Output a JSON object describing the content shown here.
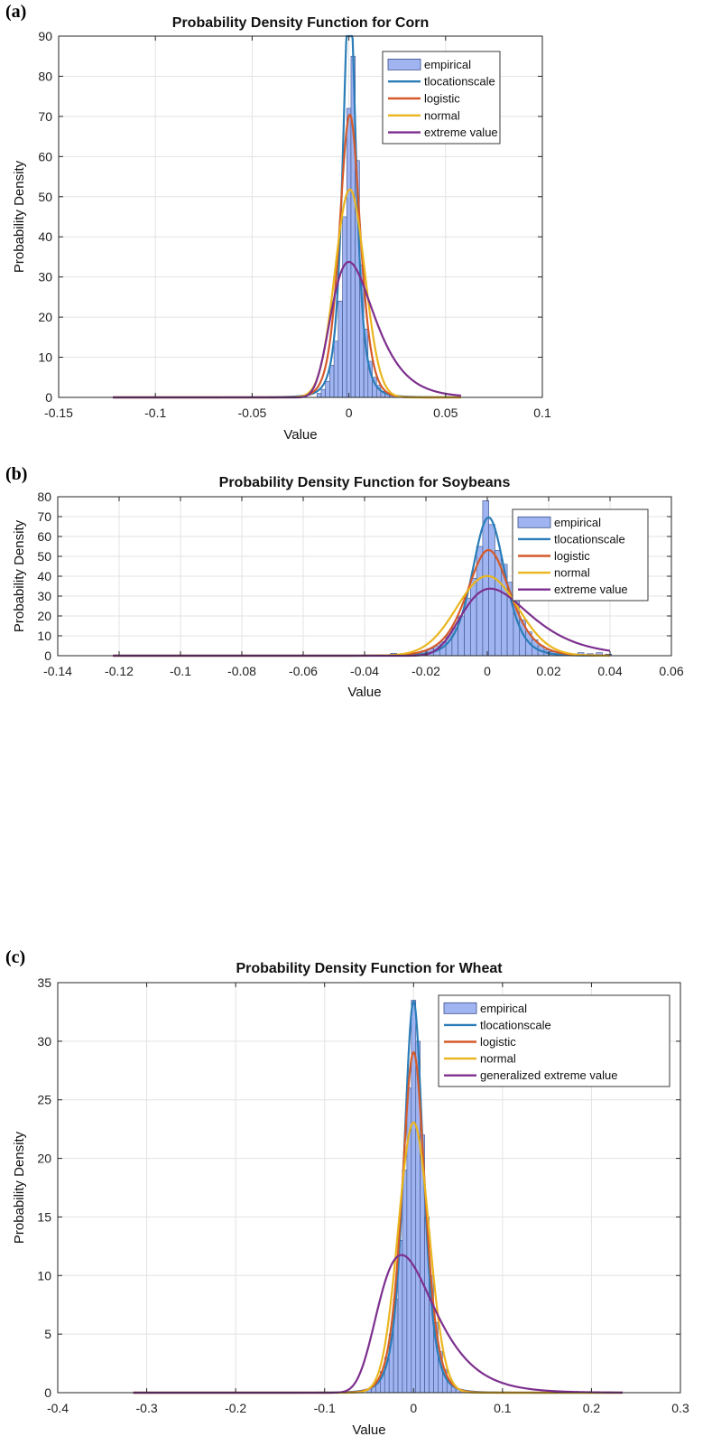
{
  "chart_data": [
    {
      "panel_label": "(a)",
      "type": "histogram+line",
      "title": "Probability Density Function for Corn",
      "xlabel": "Value",
      "ylabel": "Probability Density",
      "xlim": [
        -0.15,
        0.1
      ],
      "ylim": [
        0,
        90
      ],
      "xticks": [
        -0.15,
        -0.1,
        -0.05,
        0,
        0.05,
        0.1
      ],
      "xtick_labels": [
        "-0.15",
        "-0.1",
        "-0.05",
        "0",
        "0.05",
        "0.1"
      ],
      "yticks": [
        0,
        10,
        20,
        30,
        40,
        50,
        60,
        70,
        80,
        90
      ],
      "ytick_labels": [
        "0",
        "10",
        "20",
        "30",
        "40",
        "50",
        "60",
        "70",
        "80",
        "90"
      ],
      "grid": true,
      "legend_position": "top-right",
      "legend": [
        "empirical",
        "tlocationscale",
        "logistic",
        "normal",
        "extreme value"
      ],
      "colors": {
        "empirical_fill": "#9fb4f0",
        "empirical_edge": "#3b4f8a",
        "tlocationscale": "#2a7db8",
        "logistic": "#d45a2a",
        "normal": "#eab51e",
        "extreme_value": "#7d2f8e"
      },
      "histogram": {
        "bin_centers": [
          -0.0154,
          -0.0132,
          -0.011,
          -0.0088,
          -0.0066,
          -0.0044,
          -0.0022,
          0.0,
          0.0022,
          0.0044,
          0.0066,
          0.0088,
          0.011,
          0.0132,
          0.0154,
          0.0176,
          0.0198,
          0.022
        ],
        "values": [
          1,
          2,
          4,
          8,
          14,
          24,
          45,
          72,
          85,
          59,
          33,
          17,
          9,
          5,
          3,
          1.5,
          0.8,
          0.4
        ]
      },
      "series": [
        {
          "name": "tlocationscale",
          "dist": "t",
          "mu": 0.0003,
          "sigma": 0.0036,
          "nu": 3.0
        },
        {
          "name": "logistic",
          "dist": "logistic",
          "mu": 0.0005,
          "s": 0.00355
        },
        {
          "name": "normal",
          "dist": "normal",
          "mu": 0.0005,
          "sigma": 0.0077
        },
        {
          "name": "extreme value",
          "dist": "evmax",
          "mu": 0.0,
          "beta": 0.0109
        }
      ],
      "x_range": [
        -0.122,
        0.058
      ]
    },
    {
      "panel_label": "(b)",
      "type": "histogram+line",
      "title": "Probability Density Function for Soybeans",
      "xlabel": "Value",
      "ylabel": "Probability Density",
      "xlim": [
        -0.14,
        0.06
      ],
      "ylim": [
        0,
        80
      ],
      "xticks": [
        -0.14,
        -0.12,
        -0.1,
        -0.08,
        -0.06,
        -0.04,
        -0.02,
        0,
        0.02,
        0.04,
        0.06
      ],
      "xtick_labels": [
        "-0.14",
        "-0.12",
        "-0.1",
        "-0.08",
        "-0.06",
        "-0.04",
        "-0.02",
        "0",
        "0.02",
        "0.04",
        "0.06"
      ],
      "yticks": [
        0,
        10,
        20,
        30,
        40,
        50,
        60,
        70,
        80
      ],
      "ytick_labels": [
        "0",
        "10",
        "20",
        "30",
        "40",
        "50",
        "60",
        "70",
        "80"
      ],
      "grid": true,
      "legend_position": "top-right",
      "legend": [
        "empirical",
        "tlocationscale",
        "logistic",
        "normal",
        "extreme value"
      ],
      "colors": {
        "empirical_fill": "#9fb4f0",
        "empirical_edge": "#3b4f8a",
        "tlocationscale": "#2a7db8",
        "logistic": "#d45a2a",
        "normal": "#eab51e",
        "extreme_value": "#7d2f8e"
      },
      "histogram": {
        "bin_centers": [
          -0.0305,
          -0.0285,
          -0.0265,
          -0.0245,
          -0.0225,
          -0.0205,
          -0.0185,
          -0.0165,
          -0.0145,
          -0.0125,
          -0.0105,
          -0.0085,
          -0.0065,
          -0.0045,
          -0.0025,
          -0.0005,
          0.0015,
          0.0035,
          0.0055,
          0.0075,
          0.0095,
          0.0115,
          0.0135,
          0.0155,
          0.0175,
          0.0195,
          0.0215,
          0.0235,
          0.0255,
          0.0275,
          0.0305,
          0.0335,
          0.0365,
          0.0395
        ],
        "values": [
          1.2,
          0.4,
          0.6,
          1,
          1.5,
          2.5,
          3.5,
          5,
          7,
          10,
          14,
          20,
          29,
          39,
          55,
          78,
          66,
          53,
          46,
          37,
          28,
          18,
          12,
          8,
          5,
          3,
          2,
          1.5,
          0.8,
          0.5,
          1.5,
          1,
          1.5,
          0.8
        ]
      },
      "series": [
        {
          "name": "tlocationscale",
          "dist": "t",
          "mu": 0.0004,
          "sigma": 0.0055,
          "nu": 6.0
        },
        {
          "name": "logistic",
          "dist": "logistic",
          "mu": 0.0004,
          "s": 0.0047
        },
        {
          "name": "normal",
          "dist": "normal",
          "mu": 0.0,
          "sigma": 0.00995
        },
        {
          "name": "extreme value",
          "dist": "evmax",
          "mu": 0.001,
          "beta": 0.0109
        }
      ],
      "x_range": [
        -0.122,
        0.04
      ]
    },
    {
      "panel_label": "(c)",
      "type": "histogram+line",
      "title": "Probability Density Function for Wheat",
      "xlabel": "Value",
      "ylabel": "Probability Density",
      "xlim": [
        -0.4,
        0.3
      ],
      "ylim": [
        0,
        35
      ],
      "xticks": [
        -0.4,
        -0.3,
        -0.2,
        -0.1,
        0,
        0.1,
        0.2,
        0.3
      ],
      "xtick_labels": [
        "-0.4",
        "-0.3",
        "-0.2",
        "-0.1",
        "0",
        "0.1",
        "0.2",
        "0.3"
      ],
      "yticks": [
        0,
        5,
        10,
        15,
        20,
        25,
        30,
        35
      ],
      "ytick_labels": [
        "0",
        "5",
        "10",
        "15",
        "20",
        "25",
        "30",
        "35"
      ],
      "grid": true,
      "legend_position": "top-right",
      "legend": [
        "empirical",
        "tlocationscale",
        "logistic",
        "normal",
        "generalized extreme value"
      ],
      "colors": {
        "empirical_fill": "#9fb4f0",
        "empirical_edge": "#3b4f8a",
        "tlocationscale": "#2a7db8",
        "logistic": "#d45a2a",
        "normal": "#eab51e",
        "extreme_value": "#7d2f8e"
      },
      "histogram": {
        "bin_centers": [
          -0.05,
          -0.045,
          -0.04,
          -0.035,
          -0.03,
          -0.025,
          -0.02,
          -0.015,
          -0.01,
          -0.005,
          0.0,
          0.005,
          0.01,
          0.015,
          0.02,
          0.025,
          0.03,
          0.035,
          0.04,
          0.045,
          0.05,
          0.055
        ],
        "values": [
          0.3,
          0.6,
          1,
          1.8,
          3,
          5,
          8,
          13,
          19,
          26,
          33.5,
          30,
          22,
          15,
          10,
          6,
          3.5,
          2,
          1,
          0.6,
          0.3,
          0.2
        ]
      },
      "series": [
        {
          "name": "tlocationscale",
          "dist": "t",
          "mu": 0.0,
          "sigma": 0.0113,
          "nu": 4.5
        },
        {
          "name": "logistic",
          "dist": "logistic",
          "mu": 0.0,
          "s": 0.0086
        },
        {
          "name": "normal",
          "dist": "normal",
          "mu": 0.0,
          "sigma": 0.0173
        },
        {
          "name": "generalized extreme value",
          "dist": "evmax",
          "mu": -0.0135,
          "beta": 0.0313
        }
      ],
      "x_range": [
        -0.315,
        0.235
      ]
    }
  ]
}
